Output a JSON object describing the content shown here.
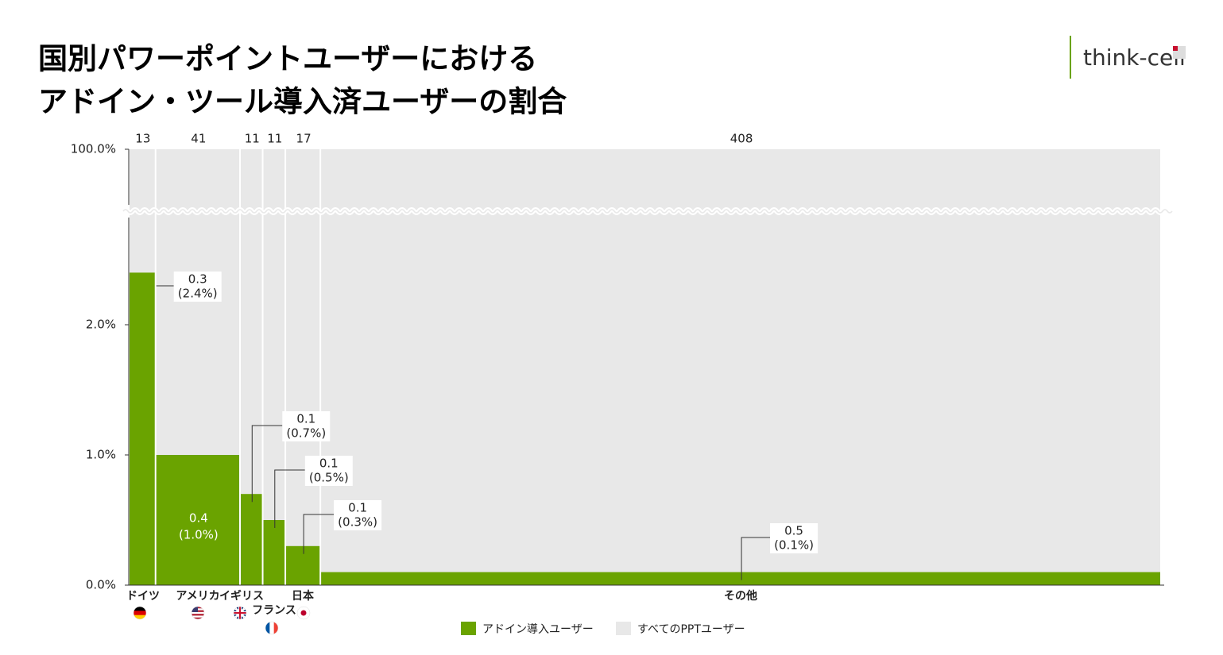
{
  "chart_data": {
    "type": "mekko",
    "title": [
      "国別パワーポイントユーザーにおける",
      "アドイン・ツール導入済ユーザーの割合"
    ],
    "logo": "think-cell",
    "categories": [
      "ドイツ",
      "アメリカ",
      "イギリス",
      "フランス",
      "日本",
      "その他"
    ],
    "widths": [
      13,
      41,
      11,
      11,
      17,
      408
    ],
    "series": [
      {
        "name": "アドイン導入ユーザー",
        "color": "#6aa300",
        "values": [
          2.4,
          1.0,
          0.7,
          0.5,
          0.3,
          0.1
        ],
        "value_labels": [
          "(2.4%)",
          "(1.0%)",
          "(0.7%)",
          "(0.5%)",
          "(0.3%)",
          "(0.1%)"
        ],
        "counts": [
          0.3,
          0.4,
          0.1,
          0.1,
          0.1,
          0.5
        ]
      },
      {
        "name": "すべてのPPTユーザー",
        "color": "#e8e8e8",
        "values": [
          100,
          100,
          100,
          100,
          100,
          100
        ]
      }
    ],
    "ylim": [
      0,
      100
    ],
    "yticks": [
      {
        "value": 0,
        "label": "0.0%"
      },
      {
        "value": 1,
        "label": "1.0%"
      },
      {
        "value": 2,
        "label": "2.0%"
      },
      {
        "value": 100,
        "label": "100.0%"
      }
    ],
    "axis_break": true,
    "legend": "bottom"
  }
}
